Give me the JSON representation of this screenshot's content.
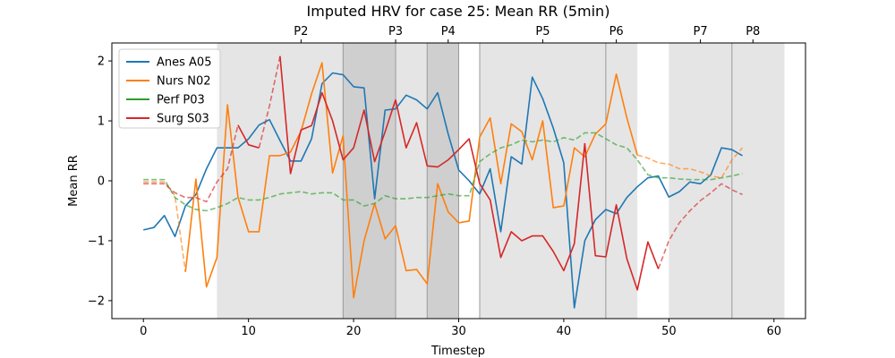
{
  "chart_data": {
    "type": "line",
    "title": "Imputed HRV for case 25: Mean RR (5min)",
    "xlabel": "Timestep",
    "ylabel": "Mean RR",
    "xlim": [
      -3,
      63
    ],
    "ylim": [
      -2.3,
      2.3
    ],
    "xticks": [
      0,
      10,
      20,
      30,
      40,
      50,
      60
    ],
    "yticks": [
      -2,
      -1,
      0,
      1,
      2
    ],
    "grid": false,
    "legend": "upper-left",
    "phase_bands": [
      {
        "start": 7,
        "end": 19,
        "shade": "light"
      },
      {
        "start": 19,
        "end": 24,
        "shade": "dark"
      },
      {
        "start": 24,
        "end": 27,
        "shade": "light"
      },
      {
        "start": 27,
        "end": 30,
        "shade": "dark"
      },
      {
        "start": 32,
        "end": 44,
        "shade": "light"
      },
      {
        "start": 44,
        "end": 47,
        "shade": "light"
      },
      {
        "start": 50,
        "end": 56,
        "shade": "light"
      },
      {
        "start": 56,
        "end": 61,
        "shade": "light"
      }
    ],
    "phase_lines": [
      19,
      24,
      27,
      30,
      32,
      44,
      56
    ],
    "phase_labels": [
      {
        "label": "P2",
        "x": 15
      },
      {
        "label": "P3",
        "x": 24
      },
      {
        "label": "P4",
        "x": 29
      },
      {
        "label": "P5",
        "x": 38
      },
      {
        "label": "P6",
        "x": 45
      },
      {
        "label": "P7",
        "x": 53
      },
      {
        "label": "P8",
        "x": 58
      }
    ],
    "series": [
      {
        "name": "Anes A05",
        "color": "#1f77b4",
        "values": [
          -0.82,
          -0.78,
          -0.58,
          -0.93,
          -0.42,
          -0.23,
          0.2,
          0.55,
          0.55,
          0.55,
          0.7,
          0.93,
          1.02,
          0.67,
          0.33,
          0.33,
          0.7,
          1.62,
          1.8,
          1.77,
          1.57,
          1.55,
          -0.3,
          1.18,
          1.2,
          1.43,
          1.35,
          1.2,
          1.47,
          0.78,
          0.18,
          0.0,
          -0.22,
          0.2,
          -0.85,
          0.4,
          0.28,
          1.73,
          1.37,
          0.88,
          0.3,
          -2.12,
          -1.0,
          -0.65,
          -0.48,
          -0.55,
          -0.28,
          -0.1,
          0.05,
          0.08,
          -0.27,
          -0.18,
          -0.02,
          -0.05,
          0.1,
          0.55,
          0.52,
          0.42
        ],
        "dashed_segments": []
      },
      {
        "name": "Nurs N02",
        "color": "#ff7f0e",
        "values": [
          -0.02,
          -0.02,
          -0.02,
          -0.25,
          -1.52,
          0.03,
          -1.77,
          -1.28,
          1.27,
          -0.27,
          -0.85,
          -0.85,
          0.42,
          0.42,
          0.48,
          0.83,
          1.45,
          1.97,
          0.13,
          0.75,
          -1.95,
          -1.0,
          -0.38,
          -0.97,
          -0.75,
          -1.5,
          -1.48,
          -1.72,
          -0.05,
          -0.52,
          -0.7,
          -0.67,
          0.73,
          1.05,
          -0.05,
          0.95,
          0.82,
          0.35,
          1.0,
          -0.45,
          -0.42,
          0.55,
          0.4,
          0.78,
          0.95,
          1.78,
          1.05,
          0.43,
          0.38,
          0.3,
          0.28,
          0.2,
          0.2,
          0.15,
          0.08,
          0.05,
          0.35,
          0.55
        ],
        "dashed_segments": [
          [
            0,
            4
          ],
          [
            47,
            57
          ]
        ]
      },
      {
        "name": "Perf P03",
        "color": "#2ca02c",
        "values": [
          0.02,
          0.02,
          0.02,
          -0.28,
          -0.4,
          -0.48,
          -0.5,
          -0.45,
          -0.38,
          -0.28,
          -0.32,
          -0.32,
          -0.28,
          -0.22,
          -0.2,
          -0.18,
          -0.22,
          -0.2,
          -0.2,
          -0.32,
          -0.32,
          -0.42,
          -0.38,
          -0.25,
          -0.3,
          -0.3,
          -0.28,
          -0.28,
          -0.25,
          -0.22,
          -0.25,
          -0.25,
          0.32,
          0.45,
          0.55,
          0.6,
          0.68,
          0.65,
          0.68,
          0.65,
          0.72,
          0.68,
          0.8,
          0.8,
          0.7,
          0.6,
          0.55,
          0.35,
          0.1,
          0.05,
          0.05,
          0.03,
          0.02,
          0.02,
          0.02,
          0.05,
          0.08,
          0.12
        ],
        "dashed_segments": [
          [
            0,
            57
          ]
        ]
      },
      {
        "name": "Surg S03",
        "color": "#d62728",
        "values": [
          -0.05,
          -0.05,
          -0.05,
          -0.2,
          -0.28,
          -0.28,
          -0.35,
          -0.02,
          0.2,
          0.93,
          0.6,
          0.55,
          1.25,
          2.08,
          0.12,
          0.85,
          0.92,
          1.47,
          1.0,
          0.35,
          0.55,
          1.18,
          0.32,
          0.82,
          1.35,
          0.55,
          0.97,
          0.25,
          0.23,
          0.35,
          0.52,
          0.7,
          -0.05,
          -0.32,
          -1.28,
          -0.85,
          -1.0,
          -0.92,
          -0.92,
          -1.18,
          -1.5,
          -1.05,
          0.62,
          -1.25,
          -1.27,
          -0.4,
          -1.3,
          -1.82,
          -1.02,
          -1.47,
          -1.0,
          -0.7,
          -0.5,
          -0.33,
          -0.2,
          -0.05,
          -0.15,
          -0.23
        ],
        "dashed_segments": [
          [
            0,
            9
          ],
          [
            11,
            13
          ],
          [
            49,
            57
          ]
        ]
      }
    ]
  }
}
